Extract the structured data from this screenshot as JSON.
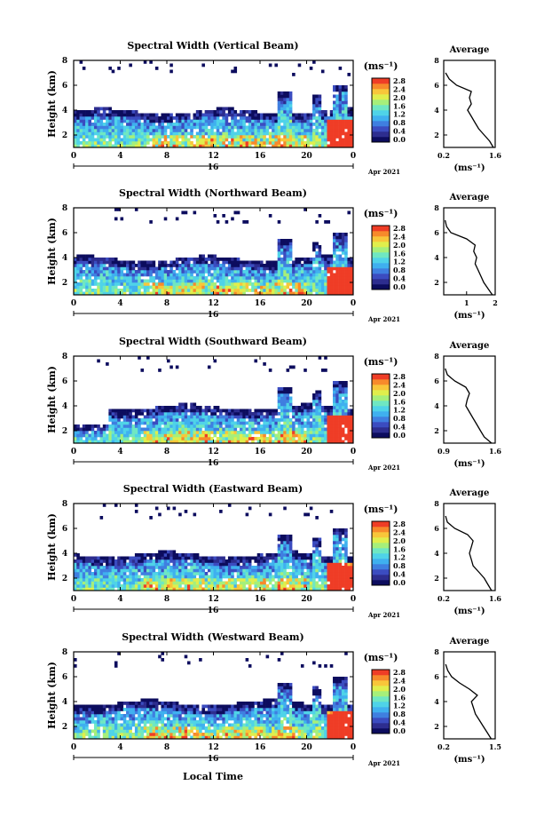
{
  "figure": {
    "x_axis_label": "Local Time",
    "x_ticks": [
      "0",
      "4",
      "8",
      "12",
      "16",
      "20",
      "0"
    ],
    "date_label": "16",
    "month_year_label": "Apr 2021",
    "y_axis_label": "Height (km)",
    "y_ticks": [
      "2",
      "4",
      "6",
      "8"
    ],
    "colorbar_unit": "(ms⁻¹)",
    "colorbar_ticks": [
      "2.8",
      "2.4",
      "2.0",
      "1.6",
      "1.2",
      "0.8",
      "0.4",
      "0.0"
    ],
    "average_title": "Average",
    "average_unit": "(ms⁻¹)",
    "colors": {
      "colormap": [
        "#0c0c5e",
        "#2d2d8f",
        "#3b4cc0",
        "#3f7fe0",
        "#3fb0ef",
        "#4fd3e8",
        "#6fe7c2",
        "#a6ef7a",
        "#e0ee4c",
        "#f8c63a",
        "#f78a2b",
        "#ef3d26"
      ],
      "no_data": "#ffffff"
    }
  },
  "chart_data": [
    {
      "type": "heatmap",
      "title": "Spectral Width (Vertical Beam)",
      "x_range_hours": [
        0,
        24
      ],
      "y_range_km": [
        1,
        8
      ],
      "color_range": [
        0.0,
        2.8
      ],
      "average_profile": {
        "title": "Average",
        "x_ticks": [
          "0.2",
          "1.6"
        ],
        "x_range": [
          0.2,
          1.6
        ],
        "height_km": [
          1.0,
          1.5,
          2.0,
          2.5,
          3.0,
          3.5,
          4.0,
          4.5,
          5.0,
          5.5,
          6.0,
          6.5,
          7.0
        ],
        "width": [
          1.55,
          1.45,
          1.3,
          1.15,
          1.05,
          0.95,
          0.85,
          0.95,
          0.9,
          0.95,
          0.55,
          0.35,
          0.25
        ]
      }
    },
    {
      "type": "heatmap",
      "title": "Spectral Width (Northward Beam)",
      "x_range_hours": [
        0,
        24
      ],
      "y_range_km": [
        1,
        8
      ],
      "color_range": [
        0.0,
        2.8
      ],
      "average_profile": {
        "title": "Average",
        "x_ticks": [
          "1",
          "2"
        ],
        "x_range": [
          0.2,
          2.0
        ],
        "height_km": [
          1.0,
          1.5,
          2.0,
          2.5,
          3.0,
          3.5,
          4.0,
          4.5,
          5.0,
          5.5,
          6.0,
          6.5,
          7.0
        ],
        "width": [
          1.9,
          1.75,
          1.6,
          1.5,
          1.4,
          1.3,
          1.35,
          1.25,
          1.3,
          1.0,
          0.45,
          0.3,
          0.25
        ]
      }
    },
    {
      "type": "heatmap",
      "title": "Spectral Width (Southward Beam)",
      "x_range_hours": [
        0,
        24
      ],
      "y_range_km": [
        1,
        8
      ],
      "color_range": [
        0.0,
        2.8
      ],
      "average_profile": {
        "title": "Average",
        "x_ticks": [
          "0.9",
          "1.6"
        ],
        "x_range": [
          0.9,
          1.6
        ],
        "height_km": [
          1.0,
          1.5,
          2.0,
          2.5,
          3.0,
          3.5,
          4.0,
          4.5,
          5.0,
          5.5,
          6.0,
          6.5,
          7.0
        ],
        "width": [
          1.55,
          1.45,
          1.4,
          1.35,
          1.3,
          1.25,
          1.2,
          1.22,
          1.25,
          1.2,
          1.05,
          0.95,
          0.92
        ]
      }
    },
    {
      "type": "heatmap",
      "title": "Spectral Width (Eastward Beam)",
      "x_range_hours": [
        0,
        24
      ],
      "y_range_km": [
        1,
        8
      ],
      "color_range": [
        0.0,
        2.8
      ],
      "average_profile": {
        "title": "Average",
        "x_ticks": [
          "0.2",
          "1.6"
        ],
        "x_range": [
          0.2,
          1.6
        ],
        "height_km": [
          1.0,
          1.5,
          2.0,
          2.5,
          3.0,
          3.5,
          4.0,
          4.5,
          5.0,
          5.5,
          6.0,
          6.5,
          7.0
        ],
        "width": [
          1.5,
          1.4,
          1.3,
          1.15,
          1.0,
          0.95,
          0.9,
          0.95,
          1.0,
          0.85,
          0.5,
          0.3,
          0.25
        ]
      }
    },
    {
      "type": "heatmap",
      "title": "Spectral Width (Westward Beam)",
      "x_range_hours": [
        0,
        24
      ],
      "y_range_km": [
        1,
        8
      ],
      "color_range": [
        0.0,
        2.8
      ],
      "average_profile": {
        "title": "Average",
        "x_ticks": [
          "0.2",
          "1.5"
        ],
        "x_range": [
          0.2,
          1.5
        ],
        "height_km": [
          1.0,
          1.5,
          2.0,
          2.5,
          3.0,
          3.5,
          4.0,
          4.5,
          5.0,
          5.5,
          6.0,
          6.5,
          7.0
        ],
        "width": [
          1.4,
          1.3,
          1.2,
          1.1,
          1.0,
          0.95,
          0.9,
          1.05,
          0.85,
          0.6,
          0.4,
          0.3,
          0.25
        ]
      }
    }
  ]
}
